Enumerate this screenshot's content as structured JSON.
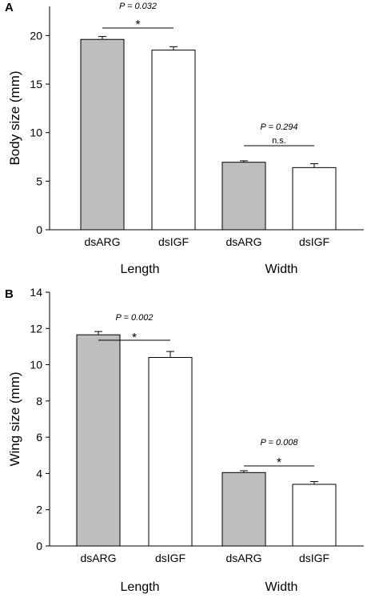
{
  "chart_data": [
    {
      "panel": "A",
      "type": "bar",
      "ylabel": "Body size (mm)",
      "ylim": [
        0,
        23
      ],
      "yticks": [
        0,
        5,
        10,
        15,
        20
      ],
      "categories": [
        "dsARG",
        "dsIGF",
        "dsARG",
        "dsIGF"
      ],
      "groups": [
        "Length",
        "Width"
      ],
      "values": [
        19.6,
        18.5,
        6.95,
        6.4
      ],
      "errors": [
        0.3,
        0.35,
        0.15,
        0.4
      ],
      "bar_colors": [
        "#bebebe",
        "#ffffff",
        "#bebebe",
        "#ffffff"
      ],
      "comparisons": [
        {
          "pvalue": "P = 0.032",
          "marker": "*"
        },
        {
          "pvalue": "P = 0.294",
          "marker": "n.s."
        }
      ]
    },
    {
      "panel": "B",
      "type": "bar",
      "ylabel": "Wing size (mm)",
      "ylim": [
        0,
        14
      ],
      "yticks": [
        0,
        2,
        4,
        6,
        8,
        10,
        12,
        14
      ],
      "categories": [
        "dsARG",
        "dsIGF",
        "dsARG",
        "dsIGF"
      ],
      "groups": [
        "Length",
        "Width"
      ],
      "values": [
        11.65,
        10.4,
        4.05,
        3.4
      ],
      "errors": [
        0.18,
        0.33,
        0.1,
        0.15
      ],
      "bar_colors": [
        "#bebebe",
        "#ffffff",
        "#bebebe",
        "#ffffff"
      ],
      "comparisons": [
        {
          "pvalue": "P = 0.002",
          "marker": "*"
        },
        {
          "pvalue": "P = 0.008",
          "marker": "*"
        }
      ]
    }
  ]
}
